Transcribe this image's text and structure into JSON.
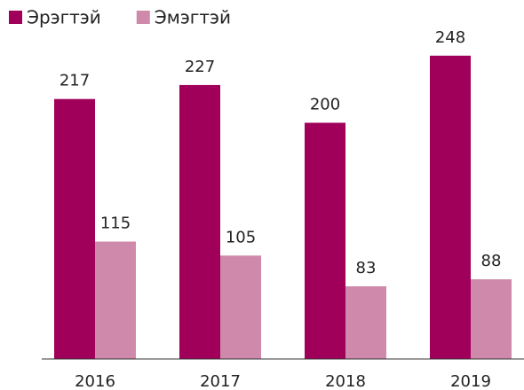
{
  "chart_data": {
    "type": "bar",
    "categories": [
      "2016",
      "2017",
      "2018",
      "2019"
    ],
    "series": [
      {
        "name": "Эрэгтэй",
        "color": "#a0005a",
        "values": [
          217,
          227,
          200,
          248
        ]
      },
      {
        "name": "Эмэгтэй",
        "color": "#cf8aab",
        "values": [
          115,
          105,
          83,
          88
        ]
      }
    ],
    "ylim": [
      31,
      265
    ],
    "legend": "top-left"
  }
}
